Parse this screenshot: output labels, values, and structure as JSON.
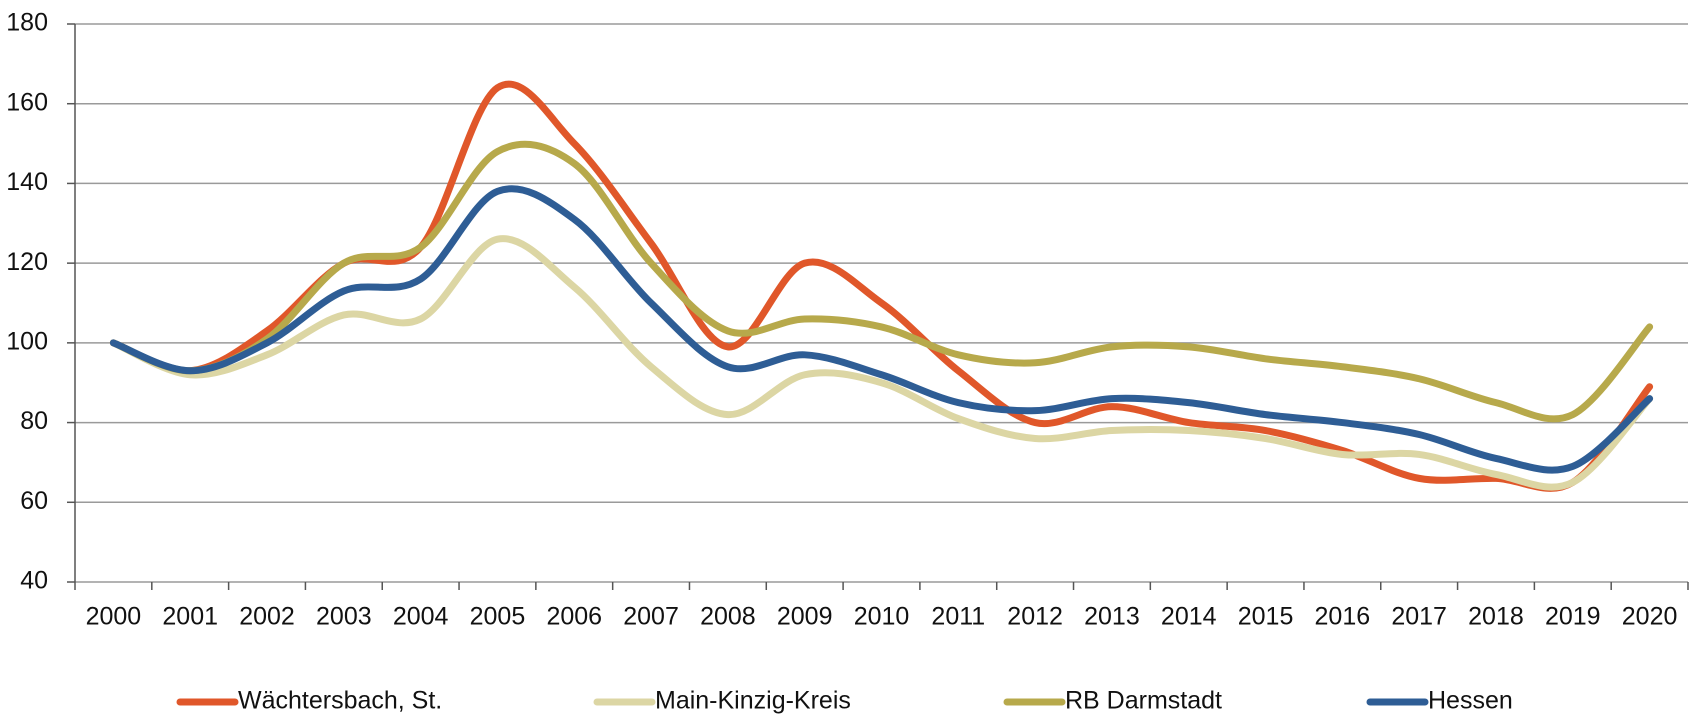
{
  "chart_data": {
    "type": "line",
    "categories": [
      "2000",
      "2001",
      "2002",
      "2003",
      "2004",
      "2005",
      "2006",
      "2007",
      "2008",
      "2009",
      "2010",
      "2011",
      "2012",
      "2013",
      "2014",
      "2015",
      "2016",
      "2017",
      "2018",
      "2019",
      "2020"
    ],
    "series": [
      {
        "name": "Wächtersbach, St.",
        "color": "#e0572a",
        "values": [
          100,
          93,
          103,
          120,
          124,
          164,
          150,
          125,
          99,
          120,
          110,
          93,
          80,
          84,
          80,
          78,
          73,
          66,
          66,
          65,
          89
        ]
      },
      {
        "name": "Main-Kinzig-Kreis",
        "color": "#dcd6a4",
        "values": [
          100,
          92,
          97,
          107,
          106,
          126,
          114,
          94,
          82,
          92,
          90,
          81,
          76,
          78,
          78,
          76,
          72,
          72,
          67,
          65,
          86
        ]
      },
      {
        "name": "RB Darmstadt",
        "color": "#b7a94b",
        "values": [
          100,
          93,
          101,
          120,
          124,
          148,
          145,
          120,
          103,
          106,
          104,
          97,
          95,
          99,
          99,
          96,
          94,
          91,
          85,
          82,
          104
        ]
      },
      {
        "name": "Hessen",
        "color": "#2e5d95",
        "values": [
          100,
          93,
          100,
          113,
          116,
          138,
          131,
          110,
          94,
          97,
          92,
          85,
          83,
          86,
          85,
          82,
          80,
          77,
          71,
          69,
          86
        ]
      }
    ],
    "ylim": [
      40,
      180
    ],
    "yticks": [
      40,
      60,
      80,
      100,
      120,
      140,
      160,
      180
    ],
    "grid": true,
    "legend": "bottom"
  }
}
